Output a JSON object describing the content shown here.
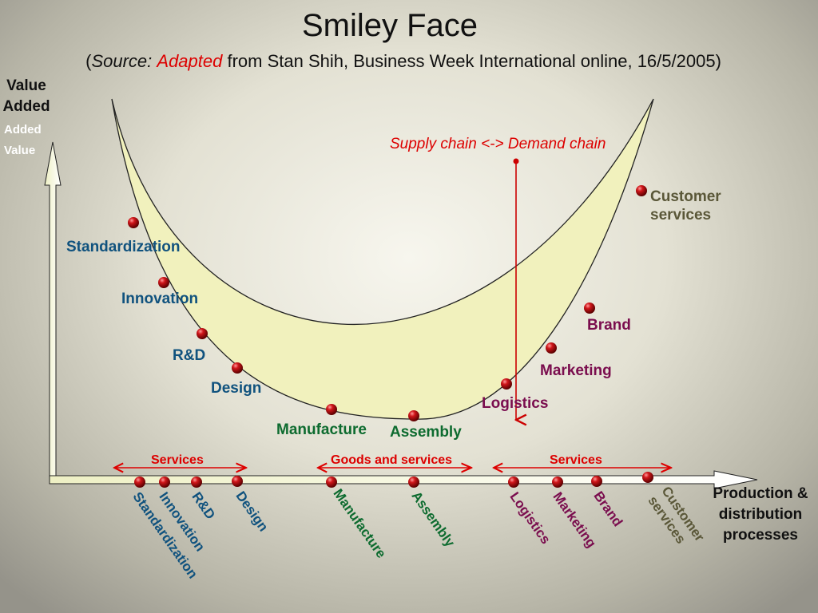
{
  "title": "Smiley Face",
  "subtitle": {
    "open": "(",
    "source": "Source:",
    "adapted": "Adapted",
    "rest": "from Stan Shih, Business Week International online, 16/5/2005)"
  },
  "y_axis": {
    "label": "Value Added",
    "label_repeat": "Added Value"
  },
  "x_axis": {
    "label": "Production & distribution processes"
  },
  "divider_label": "Supply chain <-> Demand chain",
  "curve_labels": {
    "standardization": "Standardization",
    "innovation": "Innovation",
    "rd": "R&D",
    "design": "Design",
    "manufacture": "Manufacture",
    "assembly": "Assembly",
    "logistics": "Logistics",
    "marketing": "Marketing",
    "brand": "Brand",
    "customer_services": "Customer services"
  },
  "bands": {
    "left": "Services",
    "middle": "Goods and services",
    "right": "Services"
  },
  "axis_labels": {
    "standardization": "Standardization",
    "innovation": "Innovation",
    "rd": "R&D",
    "design": "Design",
    "manufacture": "Manufacture",
    "assembly": "Assembly",
    "logistics": "Logistics",
    "marketing": "Marketing",
    "brand": "Brand",
    "customer": "Customer",
    "services": "services"
  },
  "colors": {
    "upstream": "#10527e",
    "production": "#0d6b2f",
    "downstream": "#7a0d4e",
    "customer": "#5a5738",
    "accent": "#d00000",
    "curve_fill": "#f1f1bd"
  }
}
